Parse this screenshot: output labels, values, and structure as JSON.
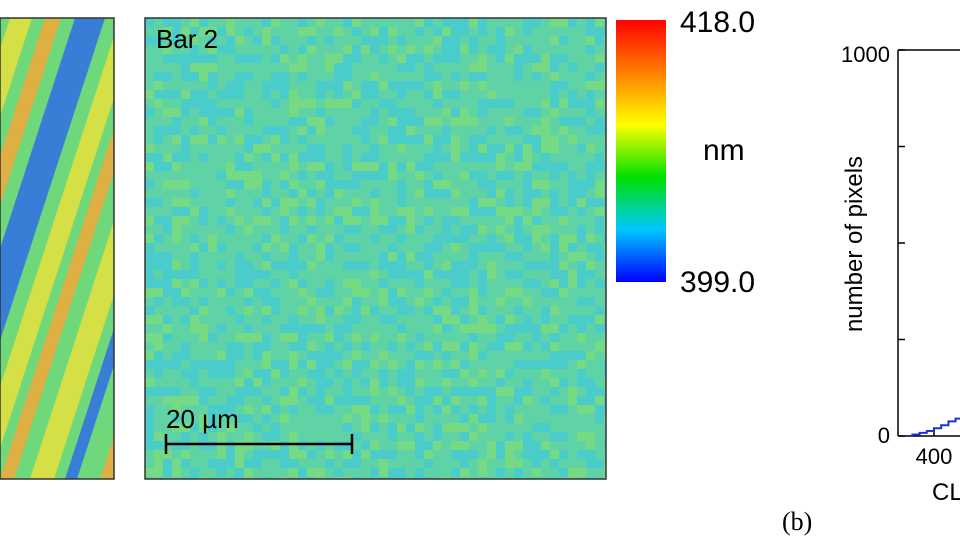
{
  "map_left": {
    "colors": {
      "bg": "#6fd87a",
      "stripe_warm": "#e6e23c",
      "stripe_orange": "#f2a838",
      "stripe_blue": "#2f6ee8"
    }
  },
  "map_right": {
    "label": "Bar 2",
    "scalebar_label": "20 µm",
    "colors": {
      "bg": "#5fd2a6",
      "speck_cyan": "#38c8e8",
      "speck_green": "#8ee060"
    }
  },
  "colorbar": {
    "max_label": "418.0",
    "min_label": "399.0",
    "unit": "nm",
    "stops": [
      "#0000ff",
      "#00c8ff",
      "#00e000",
      "#ffff00",
      "#ff8000",
      "#ff0000"
    ]
  },
  "panel_b_label": "(b)",
  "chart_data": {
    "type": "histogram",
    "title": "",
    "xlabel": "CL",
    "ylabel": "number of pixels",
    "xticks": [
      "400"
    ],
    "yticks": [
      "0",
      "1000"
    ],
    "ylim": [
      0,
      1000
    ],
    "xlim": [
      396,
      418
    ],
    "series": [
      {
        "color": "#2233cc",
        "x": [
          398.4,
          398.8,
          399.2,
          399.6,
          400.0,
          400.4,
          400.8,
          401.2,
          401.6,
          402.0
        ],
        "values": [
          0,
          4,
          8,
          13,
          20,
          28,
          38,
          45,
          52,
          60
        ]
      }
    ]
  }
}
